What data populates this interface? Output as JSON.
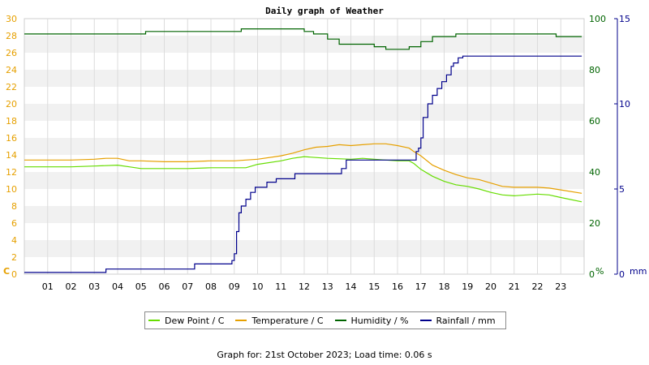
{
  "chart_data": {
    "type": "line",
    "title": "Daily graph of Weather",
    "x_ticks": [
      "01",
      "02",
      "03",
      "04",
      "05",
      "06",
      "07",
      "08",
      "09",
      "10",
      "11",
      "12",
      "13",
      "14",
      "15",
      "16",
      "17",
      "18",
      "19",
      "20",
      "21",
      "22",
      "23"
    ],
    "xlim": [
      0,
      24
    ],
    "left_axis": {
      "unit_label": "C",
      "ticks": [
        "0",
        "2",
        "4",
        "6",
        "8",
        "10",
        "12",
        "14",
        "16",
        "18",
        "20",
        "22",
        "24",
        "26",
        "28",
        "30"
      ],
      "ylim": [
        0,
        30
      ],
      "color": "#e6a000"
    },
    "humidity_axis": {
      "unit_label": "%",
      "ticks": [
        "0",
        "20",
        "40",
        "60",
        "80",
        "100"
      ],
      "ylim": [
        0,
        100
      ],
      "color": "#006400"
    },
    "rain_axis": {
      "unit_label": "mm",
      "ticks": [
        "0",
        "5",
        "10",
        "15"
      ],
      "ylim": [
        0,
        15
      ],
      "color": "#00008b"
    },
    "grid": true,
    "series": [
      {
        "name": "Dew Point / C",
        "axis": "left",
        "color": "#66dd00",
        "points": [
          [
            0,
            12.6
          ],
          [
            2,
            12.6
          ],
          [
            3,
            12.7
          ],
          [
            4,
            12.8
          ],
          [
            4.5,
            12.6
          ],
          [
            5,
            12.4
          ],
          [
            6,
            12.4
          ],
          [
            7,
            12.4
          ],
          [
            8,
            12.5
          ],
          [
            9,
            12.5
          ],
          [
            9.5,
            12.5
          ],
          [
            10,
            12.9
          ],
          [
            11,
            13.3
          ],
          [
            11.5,
            13.6
          ],
          [
            12,
            13.8
          ],
          [
            12.5,
            13.7
          ],
          [
            13,
            13.6
          ],
          [
            14,
            13.5
          ],
          [
            14.5,
            13.6
          ],
          [
            15,
            13.5
          ],
          [
            15.5,
            13.4
          ],
          [
            16,
            13.3
          ],
          [
            16.5,
            13.3
          ],
          [
            16.7,
            13.0
          ],
          [
            17,
            12.3
          ],
          [
            17.5,
            11.5
          ],
          [
            18,
            10.9
          ],
          [
            18.5,
            10.5
          ],
          [
            19,
            10.3
          ],
          [
            19.5,
            10.0
          ],
          [
            20,
            9.6
          ],
          [
            20.5,
            9.3
          ],
          [
            21,
            9.2
          ],
          [
            22,
            9.4
          ],
          [
            22.5,
            9.3
          ],
          [
            23,
            9.0
          ],
          [
            23.9,
            8.5
          ]
        ]
      },
      {
        "name": "Temperature / C",
        "axis": "left",
        "color": "#e6a000",
        "points": [
          [
            0,
            13.4
          ],
          [
            2,
            13.4
          ],
          [
            3,
            13.5
          ],
          [
            3.5,
            13.6
          ],
          [
            4,
            13.6
          ],
          [
            4.5,
            13.3
          ],
          [
            5,
            13.3
          ],
          [
            6,
            13.2
          ],
          [
            7,
            13.2
          ],
          [
            8,
            13.3
          ],
          [
            9,
            13.3
          ],
          [
            9.5,
            13.4
          ],
          [
            10,
            13.5
          ],
          [
            11,
            13.9
          ],
          [
            11.5,
            14.2
          ],
          [
            12,
            14.6
          ],
          [
            12.5,
            14.9
          ],
          [
            13,
            15.0
          ],
          [
            13.5,
            15.2
          ],
          [
            14,
            15.1
          ],
          [
            14.5,
            15.2
          ],
          [
            15,
            15.3
          ],
          [
            15.5,
            15.3
          ],
          [
            16,
            15.1
          ],
          [
            16.5,
            14.8
          ],
          [
            16.7,
            14.4
          ],
          [
            17,
            13.9
          ],
          [
            17.5,
            12.8
          ],
          [
            18,
            12.2
          ],
          [
            18.5,
            11.7
          ],
          [
            19,
            11.3
          ],
          [
            19.5,
            11.1
          ],
          [
            20,
            10.7
          ],
          [
            20.5,
            10.3
          ],
          [
            21,
            10.2
          ],
          [
            22,
            10.2
          ],
          [
            22.5,
            10.1
          ],
          [
            23,
            9.9
          ],
          [
            23.9,
            9.5
          ]
        ]
      },
      {
        "name": "Humidity / %",
        "axis": "humidity",
        "color": "#006400",
        "points": [
          [
            0,
            94
          ],
          [
            4.8,
            94
          ],
          [
            5.2,
            95
          ],
          [
            9,
            95
          ],
          [
            9.3,
            96
          ],
          [
            10.5,
            96
          ],
          [
            11,
            96
          ],
          [
            11.5,
            96
          ],
          [
            12,
            95
          ],
          [
            12.4,
            94
          ],
          [
            13,
            92
          ],
          [
            13.5,
            90
          ],
          [
            14,
            90
          ],
          [
            14.5,
            90
          ],
          [
            15,
            89
          ],
          [
            15.5,
            88
          ],
          [
            16,
            88
          ],
          [
            16.5,
            89
          ],
          [
            16.7,
            89
          ],
          [
            17,
            91
          ],
          [
            17.5,
            93
          ],
          [
            18,
            93
          ],
          [
            18.5,
            94
          ],
          [
            19,
            94
          ],
          [
            19.5,
            94
          ],
          [
            20,
            94
          ],
          [
            21,
            94
          ],
          [
            22,
            94
          ],
          [
            22.5,
            94
          ],
          [
            22.8,
            93
          ],
          [
            23.9,
            93
          ]
        ]
      },
      {
        "name": "Rainfall / mm",
        "axis": "rain",
        "color": "#00008b",
        "points": [
          [
            0,
            0.1
          ],
          [
            3.4,
            0.1
          ],
          [
            3.5,
            0.3
          ],
          [
            7.2,
            0.3
          ],
          [
            7.3,
            0.6
          ],
          [
            8.8,
            0.6
          ],
          [
            8.9,
            0.8
          ],
          [
            9.0,
            1.2
          ],
          [
            9.1,
            2.5
          ],
          [
            9.2,
            3.6
          ],
          [
            9.3,
            4.0
          ],
          [
            9.5,
            4.4
          ],
          [
            9.7,
            4.8
          ],
          [
            9.9,
            5.1
          ],
          [
            10.3,
            5.1
          ],
          [
            10.4,
            5.4
          ],
          [
            10.7,
            5.4
          ],
          [
            10.8,
            5.6
          ],
          [
            11.5,
            5.6
          ],
          [
            11.6,
            5.9
          ],
          [
            13.5,
            5.9
          ],
          [
            13.6,
            6.2
          ],
          [
            13.8,
            6.7
          ],
          [
            16.7,
            6.7
          ],
          [
            16.8,
            7.2
          ],
          [
            16.9,
            7.4
          ],
          [
            17.0,
            8.0
          ],
          [
            17.1,
            9.2
          ],
          [
            17.3,
            10.0
          ],
          [
            17.5,
            10.5
          ],
          [
            17.7,
            10.9
          ],
          [
            17.9,
            11.3
          ],
          [
            18.1,
            11.7
          ],
          [
            18.3,
            12.2
          ],
          [
            18.4,
            12.4
          ],
          [
            18.6,
            12.7
          ],
          [
            18.8,
            12.8
          ],
          [
            19,
            12.8
          ],
          [
            23.9,
            12.8
          ]
        ]
      }
    ]
  },
  "legend": [
    {
      "label": "Dew Point / C",
      "color": "#66dd00"
    },
    {
      "label": "Temperature / C",
      "color": "#e6a000"
    },
    {
      "label": "Humidity / %",
      "color": "#006400"
    },
    {
      "label": "Rainfall / mm",
      "color": "#00008b"
    }
  ],
  "footer": "Graph for: 21st October 2023; Load time: 0.06 s"
}
